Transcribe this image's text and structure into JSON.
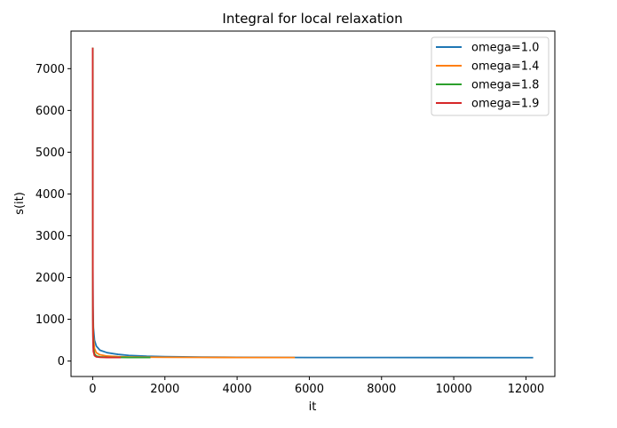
{
  "chart_data": {
    "type": "line",
    "title": "Integral for local relaxation",
    "xlabel": "it",
    "ylabel": "s(it)",
    "xlim": [
      -600,
      12800
    ],
    "ylim": [
      -370,
      7900
    ],
    "xticks": [
      0,
      2000,
      4000,
      6000,
      8000,
      10000,
      12000
    ],
    "yticks": [
      0,
      1000,
      2000,
      3000,
      4000,
      5000,
      6000,
      7000
    ],
    "grid": false,
    "legend_position": "top-right",
    "series": [
      {
        "name": "omega=1.0",
        "color": "#1f77b4",
        "x": [
          0,
          5,
          10,
          20,
          50,
          100,
          200,
          400,
          700,
          1000,
          1500,
          2000,
          3000,
          4000,
          6000,
          8000,
          10000,
          12200
        ],
        "y": [
          7500,
          2200,
          1300,
          800,
          500,
          360,
          260,
          200,
          160,
          135,
          115,
          105,
          95,
          90,
          85,
          84,
          83,
          82
        ]
      },
      {
        "name": "omega=1.4",
        "color": "#ff7f0e",
        "x": [
          0,
          5,
          10,
          20,
          50,
          100,
          200,
          400,
          700,
          1000,
          1500,
          2000,
          3000,
          4000,
          5600
        ],
        "y": [
          7500,
          1700,
          1000,
          560,
          300,
          200,
          150,
          120,
          105,
          98,
          92,
          90,
          87,
          85,
          84
        ]
      },
      {
        "name": "omega=1.8",
        "color": "#2ca02c",
        "x": [
          0,
          5,
          10,
          20,
          50,
          100,
          200,
          400,
          700,
          1000,
          1300,
          1600
        ],
        "y": [
          7500,
          1100,
          600,
          320,
          170,
          120,
          100,
          92,
          88,
          86,
          85,
          85
        ]
      },
      {
        "name": "omega=1.9",
        "color": "#d62728",
        "x": [
          0,
          5,
          10,
          20,
          50,
          100,
          200,
          400,
          600,
          780
        ],
        "y": [
          7500,
          900,
          450,
          230,
          130,
          100,
          90,
          86,
          85,
          85
        ]
      }
    ]
  }
}
